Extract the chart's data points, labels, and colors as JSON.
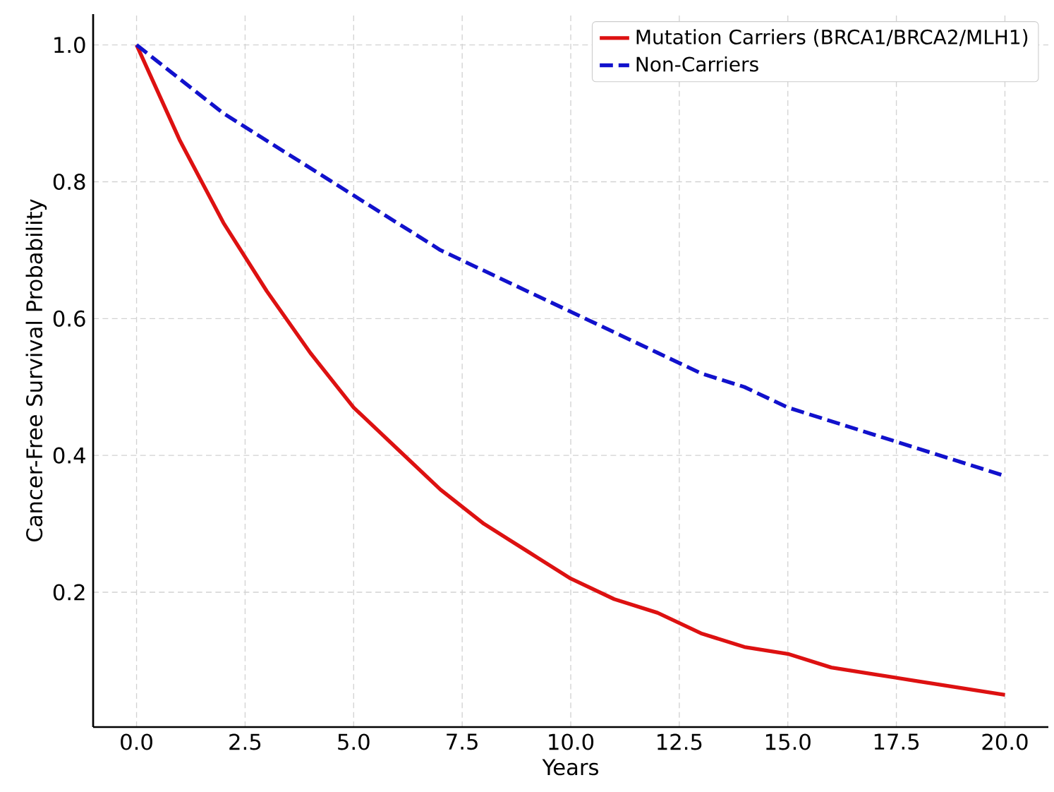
{
  "chart_data": {
    "type": "line",
    "xlabel": "Years",
    "ylabel": "Cancer-Free Survival Probability",
    "x": [
      0,
      1,
      2,
      3,
      4,
      5,
      6,
      7,
      8,
      9,
      10,
      11,
      12,
      13,
      14,
      15,
      16,
      17,
      18,
      19,
      20
    ],
    "series": [
      {
        "name": "Mutation Carriers (BRCA1/BRCA2/MLH1)",
        "color": "#dd1111",
        "line_style": "solid",
        "values": [
          1.0,
          0.86,
          0.74,
          0.64,
          0.55,
          0.47,
          0.41,
          0.35,
          0.3,
          0.26,
          0.22,
          0.19,
          0.17,
          0.14,
          0.12,
          0.11,
          0.09,
          0.08,
          0.07,
          0.06,
          0.05
        ]
      },
      {
        "name": "Non-Carriers",
        "color": "#1111cc",
        "line_style": "dashed",
        "values": [
          1.0,
          0.95,
          0.9,
          0.86,
          0.82,
          0.78,
          0.74,
          0.7,
          0.67,
          0.64,
          0.61,
          0.58,
          0.55,
          0.52,
          0.5,
          0.47,
          0.45,
          0.43,
          0.41,
          0.39,
          0.37
        ]
      }
    ],
    "xlim": [
      -1,
      21
    ],
    "ylim": [
      0.003,
      1.045
    ],
    "xticks": [
      {
        "value": 0,
        "label": "0.0"
      },
      2.5,
      {
        "value": 5,
        "label": "5.0"
      },
      7.5,
      {
        "value": 10,
        "label": "10.0"
      },
      12.5,
      {
        "value": 15,
        "label": "15.0"
      },
      17.5,
      {
        "value": 20,
        "label": "20.0"
      }
    ],
    "yticks": [
      0.2,
      0.4,
      0.6,
      0.8,
      {
        "value": 1,
        "label": "1.0"
      }
    ],
    "grid": true,
    "legend": "top right",
    "marker": "none"
  }
}
